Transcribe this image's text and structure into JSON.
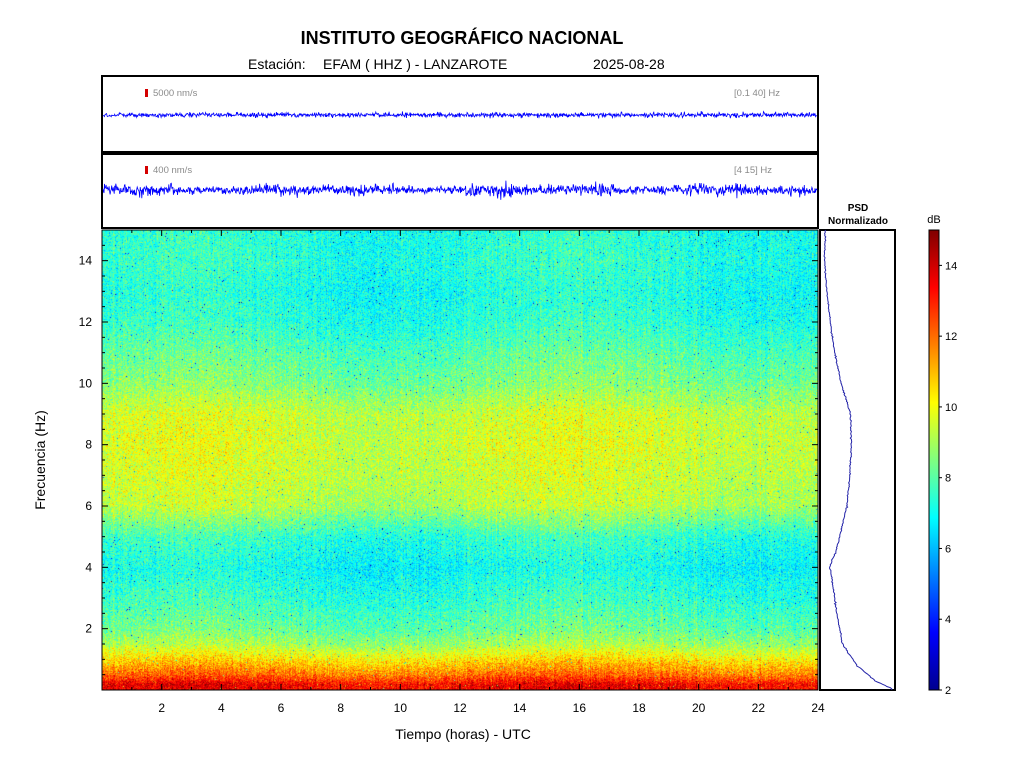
{
  "header": {
    "institution": "INSTITUTO GEOGRÁFICO NACIONAL",
    "station_prefix": "Estación:",
    "station": "EFAM ( HHZ ) - LANZAROTE",
    "date": "2025-08-28"
  },
  "trace_top": {
    "scale_label": "5000 nm/s",
    "band_label": "[0.1 40] Hz",
    "color": "#0000ff",
    "scale_color": "#d40000"
  },
  "trace_bottom": {
    "scale_label": "400 nm/s",
    "band_label": "[4 15] Hz",
    "color": "#0000ff",
    "scale_color": "#d40000"
  },
  "psd": {
    "title_line1": "PSD",
    "title_line2": "Normalizado",
    "color": "#2323a8"
  },
  "colorbar": {
    "label": "dB",
    "range": [
      2,
      15
    ],
    "ticks": [
      "2",
      "4",
      "6",
      "8",
      "10",
      "12",
      "14"
    ]
  },
  "chart_data": [
    {
      "type": "heatmap",
      "name_printed": "",
      "xlabel": "Tiempo (horas) - UTC",
      "ylabel": "Frecuencia  (Hz)",
      "xlim": [
        0,
        24
      ],
      "ylim": [
        0,
        15
      ],
      "x_ticks": [
        "2",
        "4",
        "6",
        "8",
        "10",
        "12",
        "14",
        "16",
        "18",
        "20",
        "22",
        "24"
      ],
      "y_ticks": [
        "2",
        "4",
        "6",
        "8",
        "10",
        "12",
        "14"
      ],
      "value_range_db": [
        2,
        15
      ],
      "frequency_profile_db": [
        {
          "f": 0.2,
          "db": 13.5
        },
        {
          "f": 0.5,
          "db": 12.0
        },
        {
          "f": 1.0,
          "db": 10.5
        },
        {
          "f": 1.5,
          "db": 9.0
        },
        {
          "f": 2.0,
          "db": 8.2
        },
        {
          "f": 3.0,
          "db": 7.5
        },
        {
          "f": 4.0,
          "db": 7.0
        },
        {
          "f": 5.0,
          "db": 7.5
        },
        {
          "f": 6.0,
          "db": 9.2
        },
        {
          "f": 7.0,
          "db": 9.5
        },
        {
          "f": 8.0,
          "db": 9.6
        },
        {
          "f": 9.0,
          "db": 9.5
        },
        {
          "f": 10.0,
          "db": 8.5
        },
        {
          "f": 11.0,
          "db": 8.0
        },
        {
          "f": 12.0,
          "db": 7.4
        },
        {
          "f": 13.0,
          "db": 7.2
        },
        {
          "f": 14.0,
          "db": 7.4
        },
        {
          "f": 15.0,
          "db": 7.3
        }
      ]
    },
    {
      "type": "line",
      "name_printed": "PSD Normalizado",
      "ylim": [
        0,
        15
      ],
      "points": [
        {
          "f": 0.05,
          "v": 0.98
        },
        {
          "f": 0.3,
          "v": 0.75
        },
        {
          "f": 0.8,
          "v": 0.5
        },
        {
          "f": 1.5,
          "v": 0.3
        },
        {
          "f": 2.5,
          "v": 0.22
        },
        {
          "f": 3.5,
          "v": 0.16
        },
        {
          "f": 4.0,
          "v": 0.12
        },
        {
          "f": 4.5,
          "v": 0.2
        },
        {
          "f": 5.0,
          "v": 0.26
        },
        {
          "f": 6.0,
          "v": 0.36
        },
        {
          "f": 7.0,
          "v": 0.4
        },
        {
          "f": 8.0,
          "v": 0.42
        },
        {
          "f": 9.0,
          "v": 0.41
        },
        {
          "f": 10.0,
          "v": 0.28
        },
        {
          "f": 11.0,
          "v": 0.19
        },
        {
          "f": 12.0,
          "v": 0.13
        },
        {
          "f": 13.0,
          "v": 0.08
        },
        {
          "f": 14.0,
          "v": 0.05
        },
        {
          "f": 15.0,
          "v": 0.06
        }
      ]
    }
  ]
}
